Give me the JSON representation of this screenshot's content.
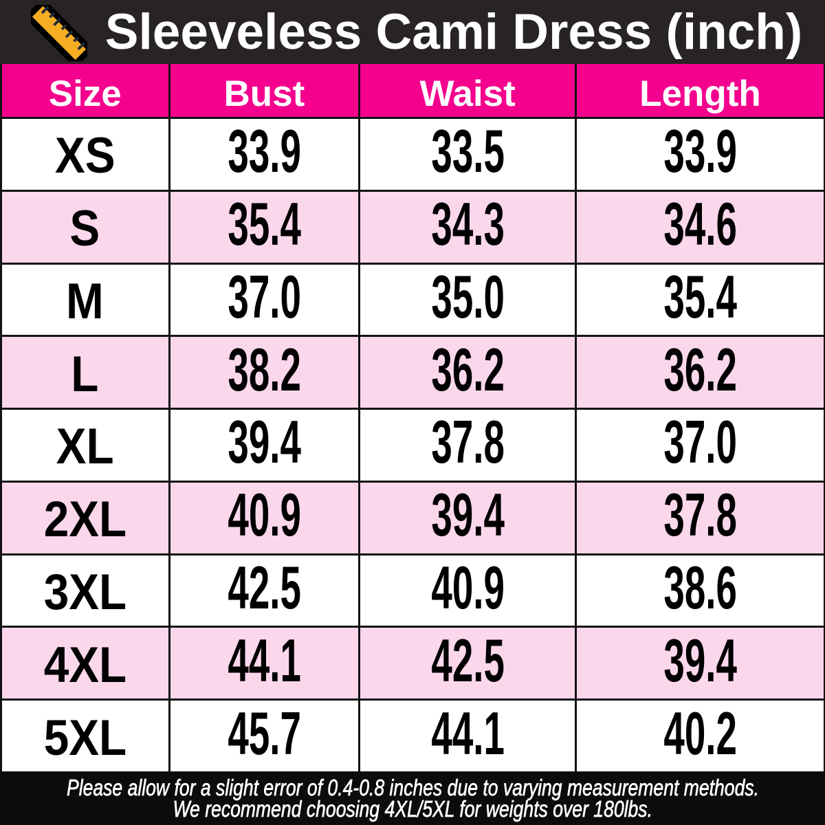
{
  "title": "Sleeveless Cami Dress (inch)",
  "icons": {
    "header_icon": "ruler-icon"
  },
  "colors": {
    "topbar_background": "#282425",
    "header_row_background": "#F4028E",
    "alt_row_background": "#FBD7EC",
    "row_background": "#ffffff",
    "grid_border": "#121212",
    "footer_background": "#0d0b0c",
    "ruler_fill": "#F5AE21",
    "header_text": "#ffffff",
    "body_text": "#000000"
  },
  "chart_data": {
    "type": "table",
    "title": "Sleeveless Cami Dress (inch)",
    "unit": "inch",
    "columns": [
      "Size",
      "Bust",
      "Waist",
      "Length"
    ],
    "rows": [
      [
        "XS",
        33.9,
        33.5,
        33.9
      ],
      [
        "S",
        35.4,
        34.3,
        34.6
      ],
      [
        "M",
        37.0,
        35.0,
        35.4
      ],
      [
        "L",
        38.2,
        36.2,
        36.2
      ],
      [
        "XL",
        39.4,
        37.8,
        37.0
      ],
      [
        "2XL",
        40.9,
        39.4,
        37.8
      ],
      [
        "3XL",
        42.5,
        40.9,
        38.6
      ],
      [
        "4XL",
        44.1,
        42.5,
        39.4
      ],
      [
        "5XL",
        45.7,
        44.1,
        40.2
      ]
    ]
  },
  "table": {
    "headers": {
      "size": "Size",
      "bust": "Bust",
      "waist": "Waist",
      "length": "Length"
    },
    "rows": [
      {
        "size": "XS",
        "bust": "33.9",
        "waist": "33.5",
        "length": "33.9"
      },
      {
        "size": "S",
        "bust": "35.4",
        "waist": "34.3",
        "length": "34.6"
      },
      {
        "size": "M",
        "bust": "37.0",
        "waist": "35.0",
        "length": "35.4"
      },
      {
        "size": "L",
        "bust": "38.2",
        "waist": "36.2",
        "length": "36.2"
      },
      {
        "size": "XL",
        "bust": "39.4",
        "waist": "37.8",
        "length": "37.0"
      },
      {
        "size": "2XL",
        "bust": "40.9",
        "waist": "39.4",
        "length": "37.8"
      },
      {
        "size": "3XL",
        "bust": "42.5",
        "waist": "40.9",
        "length": "38.6"
      },
      {
        "size": "4XL",
        "bust": "44.1",
        "waist": "42.5",
        "length": "39.4"
      },
      {
        "size": "5XL",
        "bust": "45.7",
        "waist": "44.1",
        "length": "40.2"
      }
    ]
  },
  "footer": {
    "line1": "Please allow for a slight error of 0.4-0.8 inches due to varying measurement methods.",
    "line2": "We recommend choosing 4XL/5XL for weights over 180lbs."
  }
}
